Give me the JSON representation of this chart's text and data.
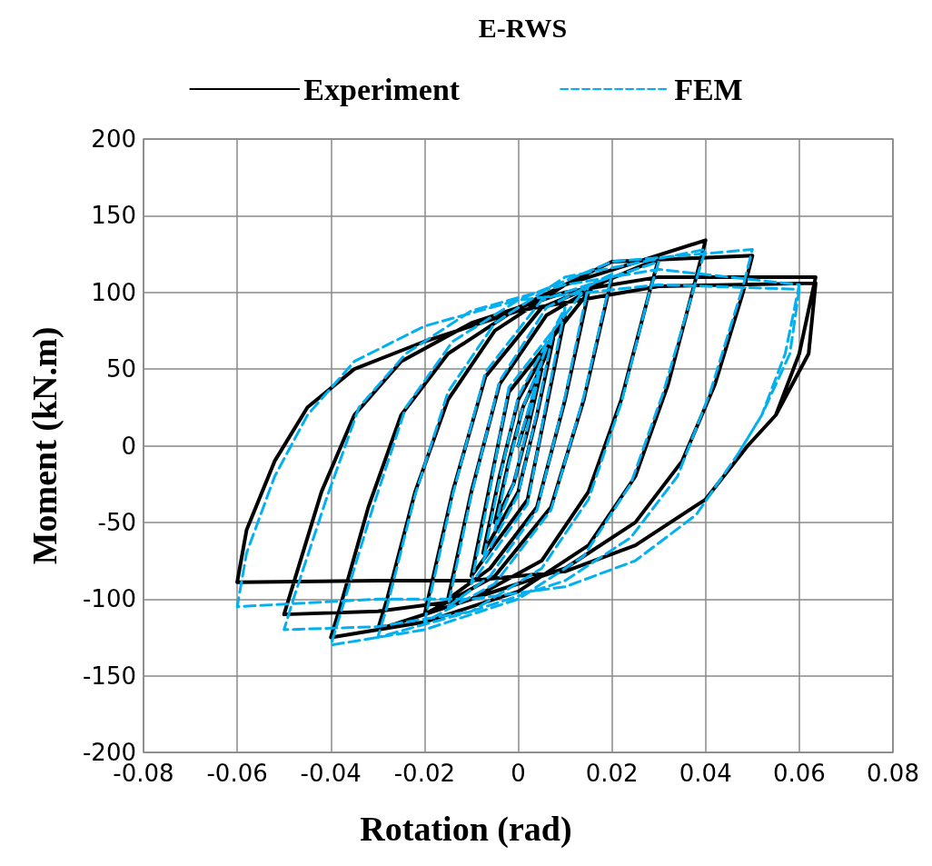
{
  "chart_data": {
    "type": "line",
    "title": "E-RWS",
    "xlabel": "Rotation (rad)",
    "ylabel": "Moment (kN.m)",
    "xlim": [
      -0.08,
      0.08
    ],
    "xticks": [
      -0.08,
      -0.06,
      -0.04,
      -0.02,
      0,
      0.02,
      0.04,
      0.06,
      0.08
    ],
    "ylim": [
      -200,
      200
    ],
    "yticks": [
      -200,
      -150,
      -100,
      -50,
      0,
      50,
      100,
      150,
      200
    ],
    "grid": true,
    "legend": "top",
    "marker": "none",
    "series": [
      {
        "name": "Experiment",
        "color": "#000000",
        "line_style": "solid",
        "x": [
          0,
          0.005,
          0.002,
          -0.001,
          -0.005,
          -0.002,
          0.001,
          0.0075,
          0.004,
          0,
          -0.0075,
          -0.004,
          0,
          0.01,
          0.006,
          0.002,
          -0.01,
          -0.006,
          -0.002,
          0.015,
          0.01,
          0.004,
          -0.006,
          -0.015,
          -0.01,
          -0.004,
          0.006,
          0.02,
          0.014,
          0.007,
          -0.005,
          -0.02,
          -0.014,
          -0.007,
          0.005,
          0.03,
          0.028,
          0.022,
          0.015,
          0.005,
          -0.01,
          -0.03,
          -0.028,
          -0.022,
          -0.015,
          -0.005,
          0.01,
          0.04,
          0.038,
          0.032,
          0.025,
          0.015,
          0,
          -0.02,
          -0.04,
          -0.038,
          -0.032,
          -0.025,
          -0.015,
          0,
          0.02,
          0.05,
          0.048,
          0.042,
          0.035,
          0.025,
          0.01,
          -0.01,
          -0.03,
          -0.05,
          -0.048,
          -0.042,
          -0.035,
          -0.025,
          -0.01,
          0.01,
          0.03,
          0.0635,
          0.06,
          0.055,
          0.049,
          0.04,
          0.025,
          0.01,
          -0.01,
          -0.03,
          -0.06,
          -0.058,
          -0.052,
          -0.045,
          -0.035,
          -0.02,
          0,
          0.03,
          0.0635,
          0.062,
          0.055,
          0.049
        ],
        "values": [
          0,
          50,
          10,
          -25,
          -50,
          -10,
          25,
          70,
          20,
          -30,
          -70,
          -20,
          30,
          85,
          25,
          -35,
          -85,
          -25,
          35,
          100,
          30,
          -40,
          -80,
          -100,
          -30,
          40,
          85,
          110,
          30,
          -40,
          -85,
          -110,
          -30,
          45,
          90,
          122,
          100,
          30,
          -30,
          -75,
          -100,
          -120,
          -100,
          -30,
          30,
          75,
          105,
          134,
          110,
          40,
          -20,
          -65,
          -95,
          -115,
          -125,
          -105,
          -40,
          20,
          60,
          90,
          120,
          124,
          100,
          40,
          -10,
          -50,
          -80,
          -100,
          -108,
          -110,
          -90,
          -30,
          20,
          55,
          80,
          100,
          110,
          110,
          60,
          20,
          0,
          -35,
          -65,
          -82,
          -88,
          -88,
          -89,
          -55,
          -10,
          25,
          50,
          68,
          88,
          104,
          106,
          60,
          20,
          0
        ]
      },
      {
        "name": "FEM",
        "color": "#00b0f0",
        "line_style": "dashed",
        "x": [
          0,
          0.005,
          0.002,
          -0.001,
          -0.005,
          -0.002,
          0.001,
          0.0075,
          0.004,
          0,
          -0.0075,
          -0.004,
          0,
          0.01,
          0.006,
          0.002,
          -0.01,
          -0.006,
          -0.002,
          0.015,
          0.01,
          0.004,
          -0.006,
          -0.015,
          -0.01,
          -0.004,
          0.006,
          0.02,
          0.014,
          0.007,
          -0.005,
          -0.02,
          -0.014,
          -0.007,
          0.005,
          0.03,
          0.028,
          0.022,
          0.015,
          0.005,
          -0.01,
          -0.03,
          -0.028,
          -0.022,
          -0.015,
          -0.005,
          0.01,
          0.04,
          0.038,
          0.031,
          0.024,
          0.014,
          0,
          -0.02,
          -0.04,
          -0.038,
          -0.031,
          -0.024,
          -0.014,
          0,
          0.02,
          0.05,
          0.048,
          0.041,
          0.034,
          0.024,
          0.01,
          -0.01,
          -0.03,
          -0.05,
          -0.048,
          -0.041,
          -0.034,
          -0.024,
          -0.01,
          0.01,
          0.03,
          0.06,
          0.057,
          0.052,
          0.047,
          0.038,
          0.025,
          0.01,
          -0.01,
          -0.03,
          -0.06,
          -0.058,
          -0.052,
          -0.045,
          -0.035,
          -0.02,
          0,
          0.03,
          0.06,
          0.058,
          0.052,
          0.047
        ],
        "values": [
          0,
          55,
          12,
          -25,
          -55,
          -12,
          25,
          75,
          22,
          -32,
          -75,
          -22,
          32,
          90,
          28,
          -38,
          -90,
          -28,
          38,
          105,
          32,
          -42,
          -85,
          -105,
          -32,
          42,
          90,
          112,
          32,
          -42,
          -90,
          -115,
          -32,
          48,
          95,
          120,
          100,
          28,
          -35,
          -80,
          -108,
          -125,
          -105,
          -32,
          35,
          80,
          110,
          128,
          108,
          35,
          -25,
          -72,
          -100,
          -120,
          -130,
          -110,
          -40,
          25,
          68,
          95,
          120,
          128,
          104,
          35,
          -20,
          -60,
          -88,
          -108,
          -118,
          -120,
          -100,
          -35,
          25,
          60,
          88,
          105,
          115,
          105,
          60,
          20,
          -5,
          -45,
          -75,
          -92,
          -100,
          -100,
          -105,
          -70,
          -20,
          20,
          55,
          78,
          95,
          105,
          102,
          60,
          20,
          -5
        ]
      }
    ]
  }
}
